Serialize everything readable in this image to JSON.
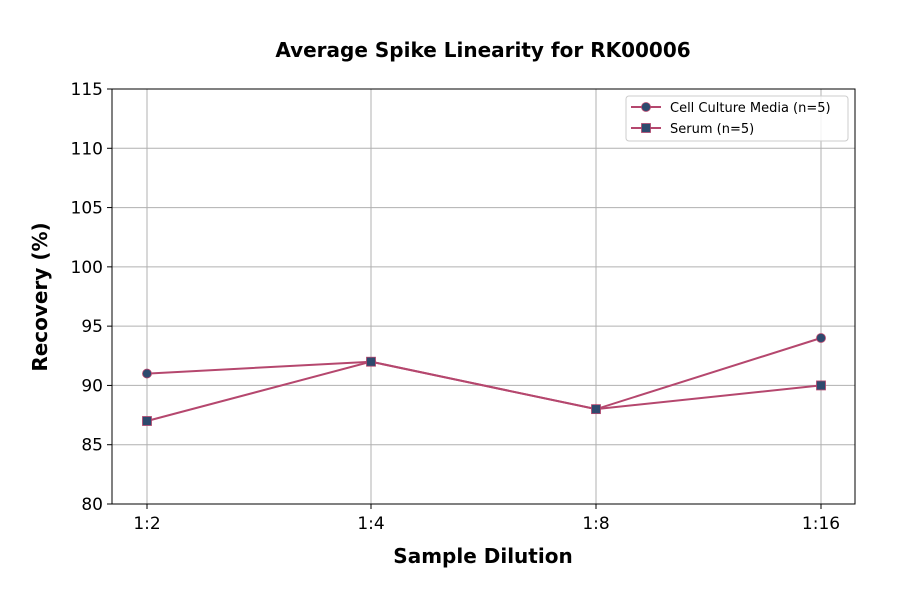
{
  "chart_data": {
    "type": "line",
    "title": "Average Spike Linearity for RK00006",
    "xlabel": "Sample Dilution",
    "ylabel": "Recovery (%)",
    "categories": [
      "1:2",
      "1:4",
      "1:8",
      "1:16"
    ],
    "ylim": [
      80,
      115
    ],
    "yticks": [
      80,
      85,
      90,
      95,
      100,
      105,
      110,
      115
    ],
    "grid": true,
    "legend_position": "top-right",
    "series": [
      {
        "name": "Cell Culture Media (n=5)",
        "marker": "circle",
        "values": [
          91,
          92,
          88,
          94
        ]
      },
      {
        "name": "Serum (n=5)",
        "marker": "square",
        "values": [
          87,
          92,
          88,
          90
        ]
      }
    ],
    "colors": {
      "line": "#b5476e",
      "marker": "#2e4a6e",
      "grid": "#b0b0b0"
    }
  }
}
